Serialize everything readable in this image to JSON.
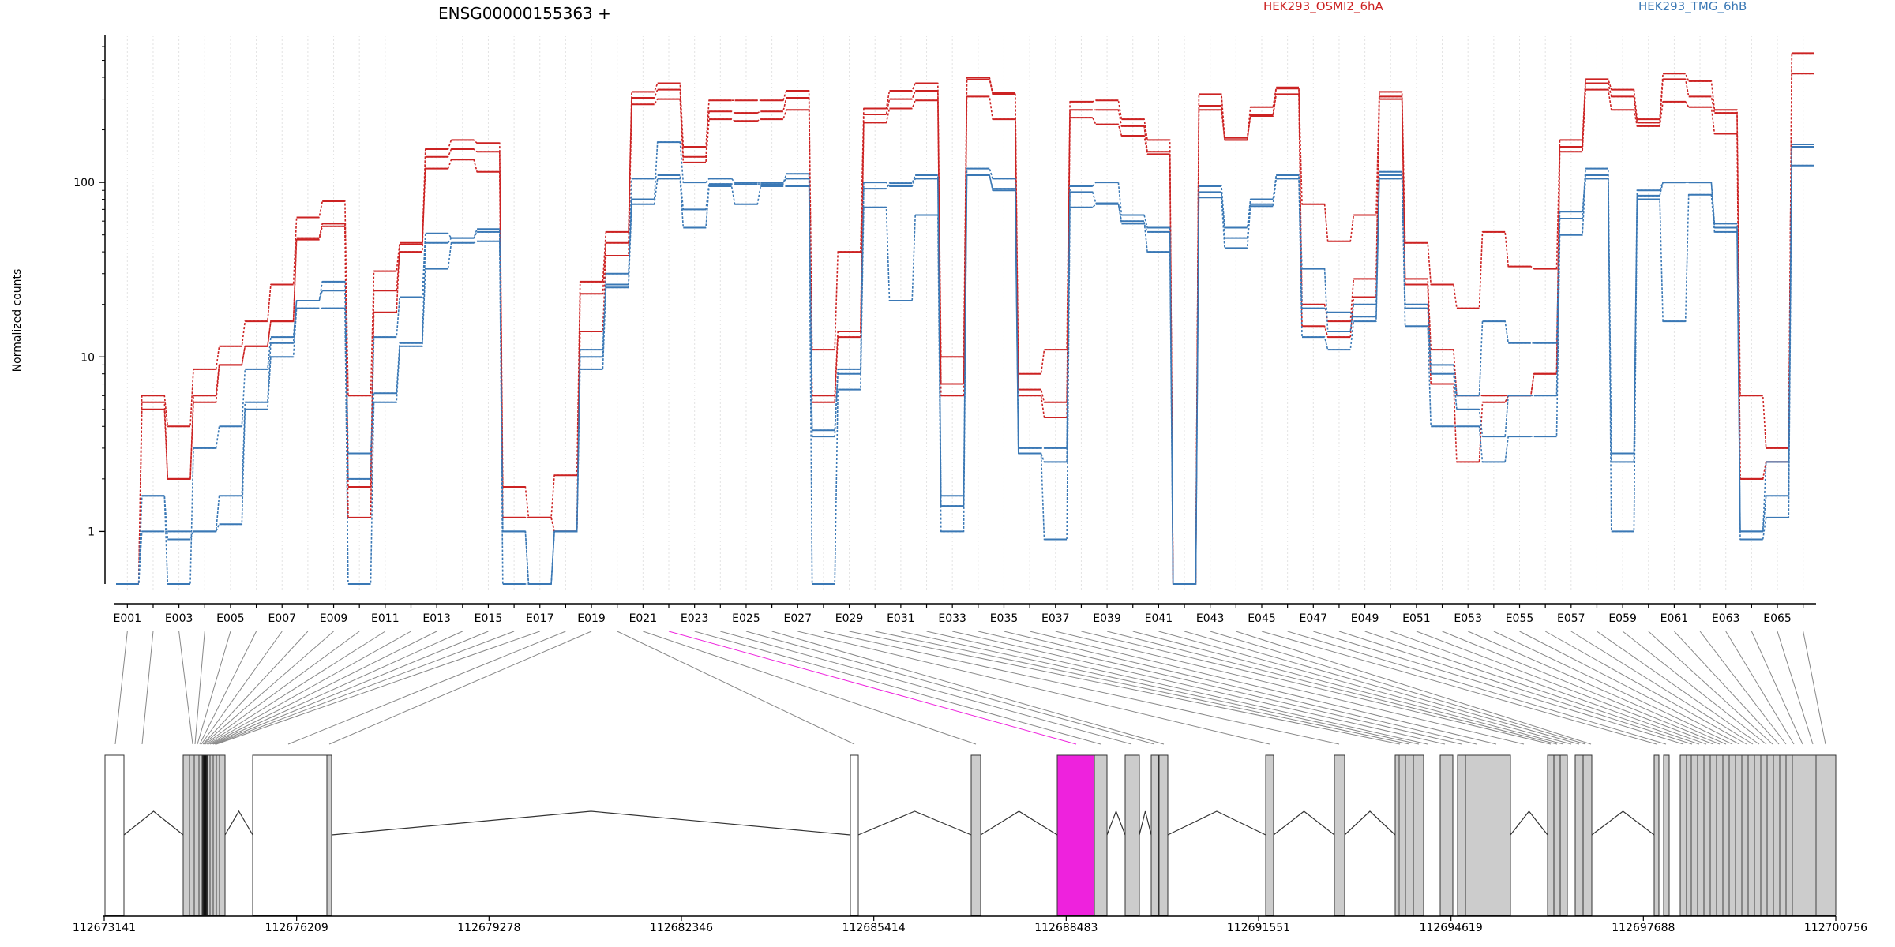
{
  "chart_data": {
    "type": "line",
    "title": "ENSG00000155363 +",
    "ylabel": "Normalized counts",
    "xlabel": "",
    "y_scale": "log",
    "ylim": [
      0.5,
      680
    ],
    "y_ticks": [
      1,
      10,
      100
    ],
    "y_tick_labels": [
      "1",
      "10",
      "100"
    ],
    "highlight_color": "#ee22dd",
    "exons": [
      "E001",
      "E002",
      "E003",
      "E004",
      "E005",
      "E006",
      "E007",
      "E008",
      "E009",
      "E010",
      "E011",
      "E012",
      "E013",
      "E014",
      "E015",
      "E016",
      "E017",
      "E018",
      "E019",
      "E020",
      "E021",
      "E022",
      "E023",
      "E024",
      "E025",
      "E026",
      "E027",
      "E028",
      "E029",
      "E030",
      "E031",
      "E032",
      "E033",
      "E034",
      "E035",
      "E036",
      "E037",
      "E038",
      "E039",
      "E040",
      "E041",
      "E042",
      "E043",
      "E044",
      "E045",
      "E046",
      "E047",
      "E048",
      "E049",
      "E050",
      "E051",
      "E052",
      "E053",
      "E054",
      "E055",
      "E056",
      "E057",
      "E058",
      "E059",
      "E060",
      "E061",
      "E062",
      "E063",
      "E064",
      "E065",
      "E066"
    ],
    "x_tick_labels": [
      "E001",
      "E003",
      "E005",
      "E007",
      "E009",
      "E011",
      "E013",
      "E015",
      "E017",
      "E019",
      "E021",
      "E023",
      "E025",
      "E027",
      "E029",
      "E031",
      "E033",
      "E035",
      "E037",
      "E039",
      "E041",
      "E043",
      "E045",
      "E047",
      "E049",
      "E051",
      "E053",
      "E055",
      "E057",
      "E059",
      "E061",
      "E063",
      "E065"
    ],
    "conditions": [
      {
        "name": "HEK293_OSMI2_6hA",
        "color": "#cc2222"
      },
      {
        "name": "HEK293_TMG_6hB",
        "color": "#3a78b5"
      }
    ],
    "series": [
      {
        "condition": 0,
        "values": [
          0.5,
          6,
          4,
          8.5,
          11.5,
          16,
          26,
          63,
          78,
          6,
          31,
          45,
          155,
          175,
          168,
          1.8,
          1.2,
          2.1,
          27,
          52,
          330,
          370,
          160,
          295,
          295,
          295,
          335,
          11,
          40,
          265,
          335,
          370,
          10,
          400,
          325,
          8,
          11,
          290,
          295,
          230,
          175,
          0.5,
          320,
          180,
          270,
          350,
          75,
          46,
          65,
          330,
          45,
          26,
          19,
          52,
          33,
          32,
          175,
          390,
          340,
          230,
          420,
          380,
          260,
          6,
          3,
          550
        ]
      },
      {
        "condition": 0,
        "values": [
          0.5,
          5.5,
          2,
          6,
          9,
          11.5,
          16,
          48,
          58,
          1.8,
          24,
          40,
          140,
          155,
          150,
          1.2,
          1.2,
          1,
          23,
          45,
          305,
          340,
          140,
          255,
          250,
          255,
          305,
          6,
          14,
          245,
          300,
          335,
          7,
          390,
          320,
          6.5,
          5.5,
          260,
          260,
          210,
          150,
          0.5,
          275,
          175,
          245,
          345,
          20,
          16,
          28,
          310,
          28,
          11,
          6,
          6,
          6,
          8,
          160,
          370,
          310,
          220,
          390,
          310,
          250,
          2,
          2.5,
          545
        ]
      },
      {
        "condition": 0,
        "values": [
          0.5,
          5,
          2,
          5.5,
          9,
          11.5,
          16,
          47,
          56,
          1.2,
          18,
          44,
          120,
          135,
          115,
          1.2,
          1.2,
          1,
          14,
          38,
          280,
          300,
          130,
          230,
          225,
          230,
          260,
          5.5,
          13,
          220,
          265,
          295,
          6,
          310,
          230,
          6,
          4.5,
          235,
          215,
          185,
          145,
          0.5,
          260,
          175,
          240,
          320,
          15,
          13,
          22,
          300,
          26,
          7,
          2.5,
          5.5,
          6,
          8,
          150,
          340,
          260,
          210,
          290,
          270,
          190,
          2,
          2.5,
          420
        ]
      },
      {
        "condition": 1,
        "values": [
          0.5,
          1.6,
          0.5,
          3,
          4,
          8.5,
          13,
          21,
          27,
          2.8,
          6.2,
          12,
          45,
          48,
          52,
          1,
          0.5,
          1,
          11,
          30,
          80,
          170,
          100,
          105,
          100,
          100,
          105,
          3.8,
          8,
          100,
          95,
          105,
          1.6,
          120,
          105,
          3,
          3,
          95,
          100,
          65,
          55,
          0.5,
          95,
          55,
          80,
          110,
          32,
          14,
          20,
          115,
          20,
          9,
          6,
          16,
          12,
          12,
          68,
          110,
          2.8,
          90,
          100,
          100,
          58,
          1,
          2.5,
          165
        ]
      },
      {
        "condition": 1,
        "values": [
          0.5,
          1.6,
          0.9,
          1,
          1.6,
          5.5,
          12,
          21,
          24,
          2,
          13,
          22,
          51,
          48,
          54,
          1,
          0.5,
          1,
          10,
          26,
          105,
          110,
          70,
          98,
          98,
          98,
          112,
          3.5,
          8.5,
          92,
          99,
          110,
          1.4,
          110,
          92,
          2.8,
          2.5,
          88,
          76,
          58,
          52,
          0.5,
          88,
          48,
          75,
          110,
          19,
          18,
          17,
          110,
          19,
          8,
          5,
          3.5,
          6,
          6,
          62,
          120,
          2.5,
          84,
          100,
          100,
          55,
          1,
          1.6,
          160
        ]
      },
      {
        "condition": 1,
        "values": [
          0.5,
          1,
          1,
          1,
          1.1,
          5,
          10,
          19,
          19,
          0.5,
          5.5,
          11.5,
          32,
          45,
          46,
          0.5,
          0.5,
          1,
          8.5,
          25,
          75,
          105,
          55,
          95,
          75,
          95,
          95,
          0.5,
          6.5,
          72,
          21,
          65,
          1,
          110,
          90,
          2.8,
          0.9,
          72,
          75,
          60,
          40,
          0.5,
          82,
          42,
          73,
          105,
          13,
          11,
          16,
          105,
          15,
          4,
          4,
          2.5,
          3.5,
          3.5,
          50,
          105,
          1,
          80,
          16,
          85,
          52,
          0.9,
          1.2,
          125
        ]
      }
    ],
    "highlight_exon": "E022",
    "gene_model": {
      "coord_start": 112673141,
      "coord_end": 112700756,
      "coord_tick_labels": [
        "112673141",
        "112676209",
        "112679278",
        "112682346",
        "112685414",
        "112688483",
        "112691551",
        "112694619",
        "112697688",
        "112700756"
      ],
      "exon_feature_colors": {
        "white": "#ffffff",
        "grey": "#cccccc",
        "highlight": "#ee22dd"
      }
    }
  }
}
